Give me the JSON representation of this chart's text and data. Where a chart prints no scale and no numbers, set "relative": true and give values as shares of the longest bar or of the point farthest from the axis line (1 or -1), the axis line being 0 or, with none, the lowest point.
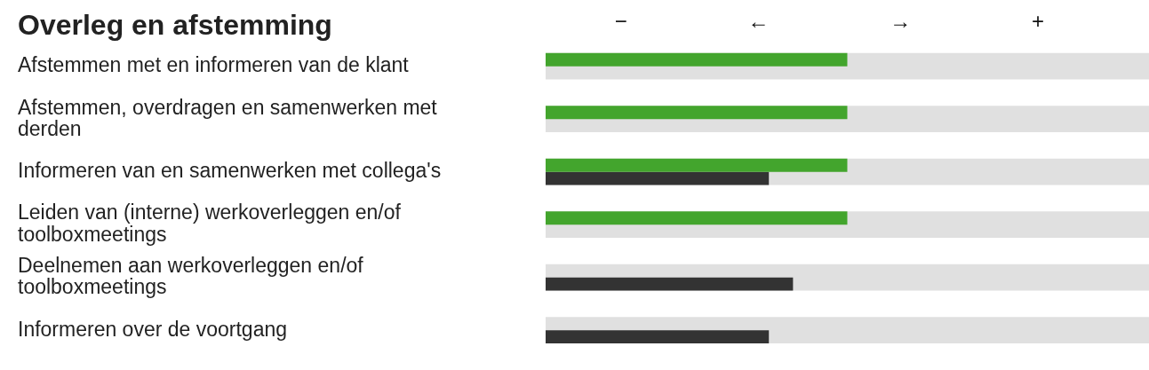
{
  "chart_data": {
    "type": "bar",
    "orientation": "horizontal",
    "relative": true,
    "title": "Overleg en afstemming",
    "categories": [
      "Afstemmen met en informeren van de klant",
      "Afstemmen, overdragen en samenwerken met derden",
      "Informeren van en samenwerken met collega's",
      "Leiden van (interne) werkoverleggen en/of toolboxmeetings",
      "Deelnemen aan werkoverleggen en/of toolboxmeetings",
      "Informeren over de voortgang"
    ],
    "series": [
      {
        "color": "#e0e0e0",
        "values": [
          1,
          1,
          1,
          1,
          1,
          1
        ]
      },
      {
        "color": "#43a52d",
        "values": [
          0.5,
          0.5,
          0.5,
          0.5,
          null,
          null
        ]
      },
      {
        "color": "#333333",
        "values": [
          null,
          null,
          0.37,
          null,
          0.41,
          0.37
        ]
      }
    ],
    "annotations": [
      "−",
      "←",
      "→",
      "+"
    ]
  }
}
